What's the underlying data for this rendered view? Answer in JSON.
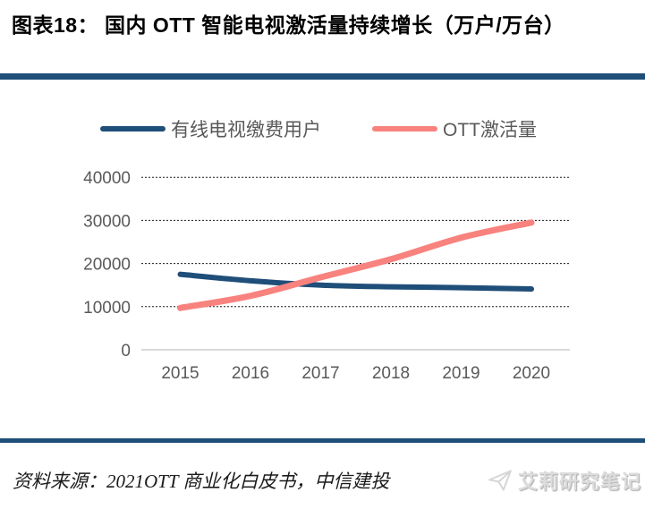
{
  "header": {
    "title": "图表18： 国内 OTT 智能电视激活量持续增长（万户/万台）"
  },
  "footer": {
    "source": "资料来源：2021OTT 商业化白皮书，中信建投",
    "watermark": "艾莉研究笔记",
    "watermark_icon": "paper-plane-icon"
  },
  "colors": {
    "divider_bar": "#1F4E79",
    "axis_text": "#595959",
    "gridline": "#1a1a1a",
    "zero_line": "#D9D9D9",
    "watermark_grey": "#DCDCDC"
  },
  "chart_data": {
    "type": "line",
    "categories": [
      "2015",
      "2016",
      "2017",
      "2018",
      "2019",
      "2020"
    ],
    "series": [
      {
        "name": "有线电视缴费用户",
        "color": "#1F4E79",
        "values": [
          17500,
          16000,
          15000,
          14600,
          14400,
          14100
        ]
      },
      {
        "name": "OTT激活量",
        "color": "#F8827E",
        "values": [
          9700,
          12500,
          16800,
          21000,
          26000,
          29500
        ]
      }
    ],
    "title": "",
    "xlabel": "",
    "ylabel": "",
    "ylim": [
      0,
      40000
    ],
    "yticks": [
      0,
      10000,
      20000,
      30000,
      40000
    ],
    "grid": "horizontal-dotted",
    "legend_position": "top",
    "line_style": "smoothed"
  }
}
